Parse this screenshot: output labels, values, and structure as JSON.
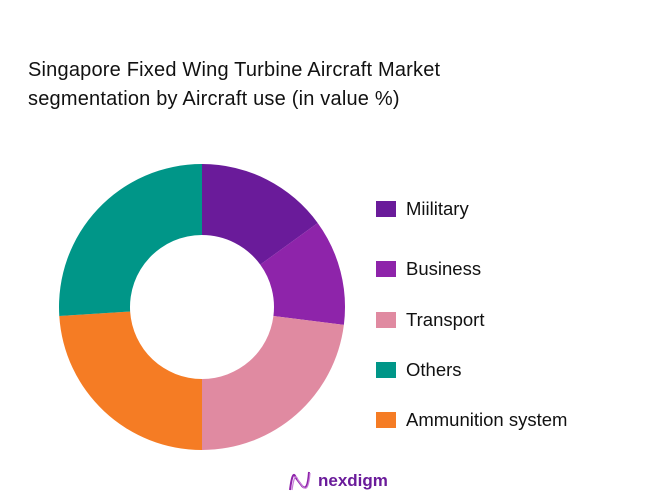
{
  "chart_data": {
    "type": "pie",
    "subtype": "donut",
    "title": "Singapore Fixed Wing Turbine Aircraft Market segmentation by Aircraft use (in value %)",
    "title_lines": [
      "Singapore Fixed Wing Turbine Aircraft Market",
      "segmentation by Aircraft use (in value %)"
    ],
    "slices": [
      {
        "label": "Miilitary",
        "value": 15,
        "color": "#6a1b9a"
      },
      {
        "label": "Business",
        "value": 12,
        "color": "#8e24aa"
      },
      {
        "label": "Transport",
        "value": 23,
        "color": "#e08aa1"
      },
      {
        "label": "Ammunition system",
        "value": 24,
        "color": "#f57c24"
      },
      {
        "label": "Others",
        "value": 26,
        "color": "#009688"
      }
    ],
    "legend": [
      "Miilitary",
      "Business",
      "Transport",
      "Others",
      "Ammunition system"
    ],
    "legend_placement": "right"
  },
  "brand": {
    "name": "nexdigm"
  }
}
